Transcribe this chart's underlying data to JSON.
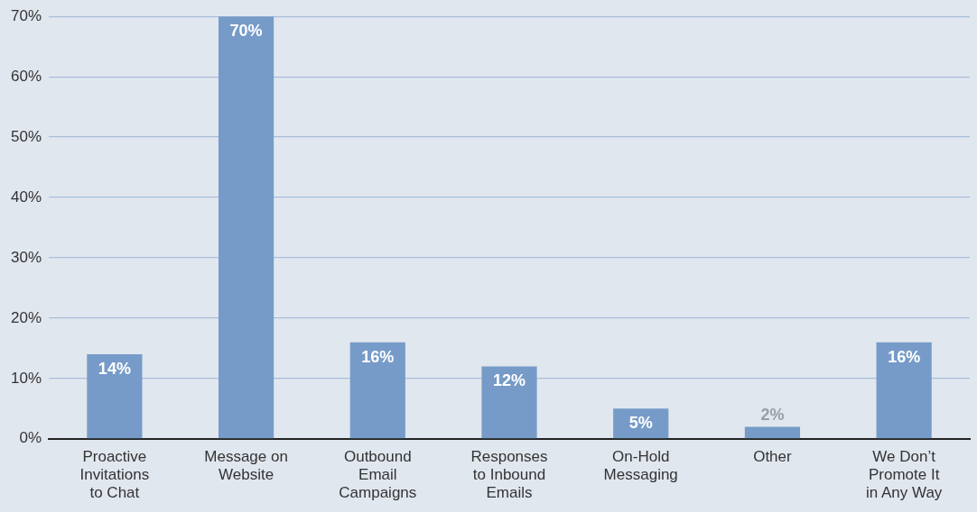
{
  "chart_data": {
    "type": "bar",
    "categories": [
      "Proactive Invitations to Chat",
      "Message on Website",
      "Outbound Email Campaigns",
      "Responses to Inbound Emails",
      "On-Hold Messaging",
      "Other",
      "We Don’t Promote It in Any Way"
    ],
    "values": [
      14,
      70,
      16,
      12,
      5,
      2,
      16
    ],
    "value_labels": [
      "14%",
      "70%",
      "16%",
      "12%",
      "5%",
      "2%",
      "16%"
    ],
    "color": "#769bc8",
    "ylim": [
      0,
      70
    ],
    "yticks": [
      {
        "value": 0,
        "label": "0%"
      },
      {
        "value": 10,
        "label": "10%"
      },
      {
        "value": 20,
        "label": "20%"
      },
      {
        "value": 30,
        "label": "30%"
      },
      {
        "value": 40,
        "label": "40%"
      },
      {
        "value": 50,
        "label": "50%"
      },
      {
        "value": 60,
        "label": "60%"
      },
      {
        "value": 70,
        "label": "70%"
      }
    ],
    "grid": "y",
    "legend": false
  }
}
